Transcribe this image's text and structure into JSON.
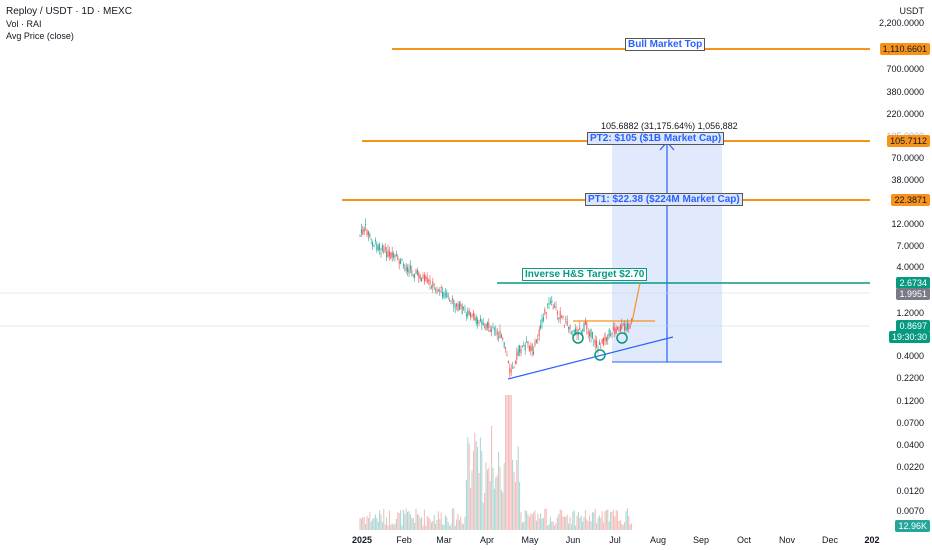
{
  "header": {
    "symbol": "Reploy / USDT · 1D · MEXC",
    "vol": "Vol · RAI",
    "avg": "Avg Price (close)"
  },
  "axis": {
    "currency": "USDT",
    "price_labels": [
      "2,200.0000",
      "700.0000",
      "380.0000",
      "220.0000",
      "105.0000",
      "70.0000",
      "38.0000",
      "12.0000",
      "7.0000",
      "4.0000",
      "1.2000",
      "0.4000",
      "0.2200",
      "0.1200",
      "0.0700",
      "0.0400",
      "0.0220",
      "0.0120",
      "0.0070"
    ],
    "x_labels": [
      "2025",
      "Feb",
      "Mar",
      "Apr",
      "May",
      "Jun",
      "Jul",
      "Aug",
      "Sep",
      "Oct",
      "Nov",
      "Dec",
      "202"
    ]
  },
  "tags": {
    "bull": "1,110.6601",
    "pt2": "105.7112",
    "pt1": "22.3871",
    "hs": "2.6734",
    "gray": "1.9951",
    "last": "0.8697",
    "timer": "19:30:30",
    "volume": "12.96K"
  },
  "annotations": {
    "bull_top": "Bull Market Top",
    "pt2": "PT2: $105 ($1B Market Cap)",
    "pt1": "PT1: $22.38 ($224M Market Cap)",
    "hs": "Inverse H&S Target $2.70",
    "measure": "105.6882 (31,175.64%) 1,056,882"
  },
  "colors": {
    "orange": "#f7931a",
    "green": "#089981",
    "blue": "#2962ff",
    "up": "#26a69a",
    "down": "#ef5350",
    "zone": "#dbe6fb"
  }
}
